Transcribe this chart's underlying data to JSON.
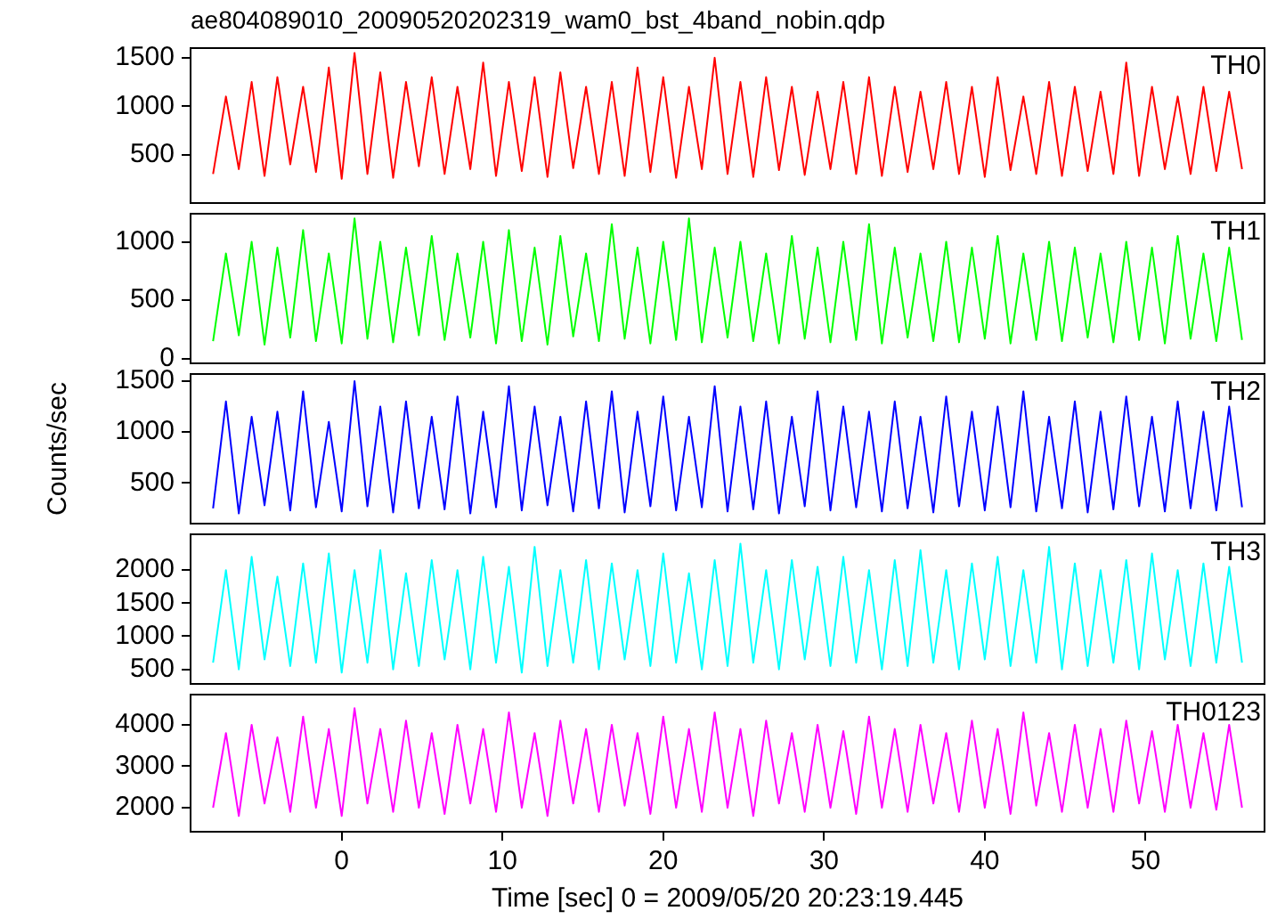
{
  "chart_data": [
    {
      "type": "line",
      "title": "ae804089010_20090520202319_wam0_bst_4band_nobin.qdp",
      "x": [
        -8,
        -7.2,
        -6.4,
        -5.6,
        -4.8,
        -4,
        -3.2,
        -2.4,
        -1.6,
        -0.8,
        0,
        0.8,
        1.6,
        2.4,
        3.2,
        4,
        4.8,
        5.6,
        6.4,
        7.2,
        8,
        8.8,
        9.6,
        10.4,
        11.2,
        12,
        12.8,
        13.6,
        14.4,
        15.2,
        16,
        16.8,
        17.6,
        18.4,
        19.2,
        20,
        20.8,
        21.6,
        22.4,
        23.2,
        24,
        24.8,
        25.6,
        26.4,
        27.2,
        28,
        28.8,
        29.6,
        30.4,
        31.2,
        32,
        32.8,
        33.6,
        34.4,
        35.2,
        36,
        36.8,
        37.6,
        38.4,
        39.2,
        40,
        40.8,
        41.6,
        42.4,
        43.2,
        44,
        44.8,
        45.6,
        46.4,
        47.2,
        48,
        48.8,
        49.6,
        50.4,
        51.2,
        52,
        52.8,
        53.6,
        54.4,
        55.2,
        56
      ],
      "series": [
        {
          "name": "TH0",
          "color": "#ff0000",
          "values": [
            300,
            1100,
            350,
            1250,
            280,
            1300,
            400,
            1200,
            320,
            1400,
            250,
            1550,
            300,
            1350,
            260,
            1250,
            380,
            1300,
            300,
            1200,
            350,
            1450,
            280,
            1250,
            330,
            1300,
            270,
            1350,
            360,
            1200,
            300,
            1250,
            280,
            1400,
            320,
            1300,
            260,
            1200,
            350,
            1500,
            300,
            1250,
            270,
            1300,
            340,
            1200,
            290,
            1150,
            350,
            1250,
            300,
            1300,
            280,
            1200,
            320,
            1150,
            350,
            1250,
            300,
            1200,
            270,
            1300,
            340,
            1100,
            300,
            1250,
            280,
            1200,
            330,
            1150,
            300,
            1450,
            280,
            1200,
            350,
            1100,
            300,
            1200,
            330,
            1150,
            350
          ]
        }
      ],
      "xlim": [
        -9.4,
        57.4
      ],
      "xticks": [
        0,
        10,
        20,
        30,
        40,
        50
      ],
      "ylim": [
        0,
        1600
      ],
      "yticks": [
        500,
        1000,
        1500
      ],
      "tick_labels": "y"
    },
    {
      "type": "line",
      "x": [
        -8,
        -7.2,
        -6.4,
        -5.6,
        -4.8,
        -4,
        -3.2,
        -2.4,
        -1.6,
        -0.8,
        0,
        0.8,
        1.6,
        2.4,
        3.2,
        4,
        4.8,
        5.6,
        6.4,
        7.2,
        8,
        8.8,
        9.6,
        10.4,
        11.2,
        12,
        12.8,
        13.6,
        14.4,
        15.2,
        16,
        16.8,
        17.6,
        18.4,
        19.2,
        20,
        20.8,
        21.6,
        22.4,
        23.2,
        24,
        24.8,
        25.6,
        26.4,
        27.2,
        28,
        28.8,
        29.6,
        30.4,
        31.2,
        32,
        32.8,
        33.6,
        34.4,
        35.2,
        36,
        36.8,
        37.6,
        38.4,
        39.2,
        40,
        40.8,
        41.6,
        42.4,
        43.2,
        44,
        44.8,
        45.6,
        46.4,
        47.2,
        48,
        48.8,
        49.6,
        50.4,
        51.2,
        52,
        52.8,
        53.6,
        54.4,
        55.2,
        56
      ],
      "series": [
        {
          "name": "TH1",
          "color": "#00ff00",
          "values": [
            150,
            900,
            200,
            1000,
            120,
            950,
            180,
            1100,
            150,
            900,
            130,
            1200,
            170,
            1000,
            140,
            950,
            200,
            1050,
            160,
            900,
            180,
            1000,
            130,
            1100,
            150,
            950,
            120,
            1050,
            190,
            900,
            150,
            1150,
            170,
            950,
            130,
            1000,
            160,
            1200,
            140,
            950,
            180,
            1000,
            150,
            900,
            130,
            1050,
            170,
            950,
            140,
            1000,
            160,
            1150,
            130,
            950,
            180,
            900,
            150,
            1000,
            140,
            950,
            170,
            1050,
            130,
            900,
            160,
            1000,
            150,
            950,
            180,
            900,
            140,
            1000,
            160,
            950,
            130,
            1050,
            170,
            900,
            150,
            950,
            160
          ]
        }
      ],
      "xlim": [
        -9.4,
        57.4
      ],
      "xticks": [
        0,
        10,
        20,
        30,
        40,
        50
      ],
      "ylim": [
        -40,
        1240
      ],
      "yticks": [
        0,
        500,
        1000
      ],
      "tick_labels": "y"
    },
    {
      "type": "line",
      "ylabel": "Counts/sec",
      "x": [
        -8,
        -7.2,
        -6.4,
        -5.6,
        -4.8,
        -4,
        -3.2,
        -2.4,
        -1.6,
        -0.8,
        0,
        0.8,
        1.6,
        2.4,
        3.2,
        4,
        4.8,
        5.6,
        6.4,
        7.2,
        8,
        8.8,
        9.6,
        10.4,
        11.2,
        12,
        12.8,
        13.6,
        14.4,
        15.2,
        16,
        16.8,
        17.6,
        18.4,
        19.2,
        20,
        20.8,
        21.6,
        22.4,
        23.2,
        24,
        24.8,
        25.6,
        26.4,
        27.2,
        28,
        28.8,
        29.6,
        30.4,
        31.2,
        32,
        32.8,
        33.6,
        34.4,
        35.2,
        36,
        36.8,
        37.6,
        38.4,
        39.2,
        40,
        40.8,
        41.6,
        42.4,
        43.2,
        44,
        44.8,
        45.6,
        46.4,
        47.2,
        48,
        48.8,
        49.6,
        50.4,
        51.2,
        52,
        52.8,
        53.6,
        54.4,
        55.2,
        56
      ],
      "series": [
        {
          "name": "TH2",
          "color": "#0000ff",
          "values": [
            250,
            1300,
            200,
            1150,
            280,
            1200,
            230,
            1400,
            260,
            1100,
            220,
            1500,
            270,
            1250,
            210,
            1300,
            250,
            1150,
            240,
            1350,
            200,
            1200,
            260,
            1450,
            230,
            1250,
            280,
            1150,
            220,
            1300,
            250,
            1400,
            210,
            1200,
            270,
            1350,
            230,
            1150,
            260,
            1450,
            220,
            1250,
            240,
            1300,
            200,
            1150,
            270,
            1400,
            230,
            1250,
            260,
            1200,
            220,
            1300,
            250,
            1150,
            210,
            1350,
            270,
            1200,
            230,
            1250,
            260,
            1400,
            220,
            1150,
            250,
            1300,
            210,
            1200,
            240,
            1350,
            270,
            1150,
            220,
            1300,
            250,
            1200,
            230,
            1250,
            260
          ]
        }
      ],
      "xlim": [
        -9.4,
        57.4
      ],
      "xticks": [
        0,
        10,
        20,
        30,
        40,
        50
      ],
      "ylim": [
        100,
        1570
      ],
      "yticks": [
        500,
        1000,
        1500
      ],
      "tick_labels": "y"
    },
    {
      "type": "line",
      "x": [
        -8,
        -7.2,
        -6.4,
        -5.6,
        -4.8,
        -4,
        -3.2,
        -2.4,
        -1.6,
        -0.8,
        0,
        0.8,
        1.6,
        2.4,
        3.2,
        4,
        4.8,
        5.6,
        6.4,
        7.2,
        8,
        8.8,
        9.6,
        10.4,
        11.2,
        12,
        12.8,
        13.6,
        14.4,
        15.2,
        16,
        16.8,
        17.6,
        18.4,
        19.2,
        20,
        20.8,
        21.6,
        22.4,
        23.2,
        24,
        24.8,
        25.6,
        26.4,
        27.2,
        28,
        28.8,
        29.6,
        30.4,
        31.2,
        32,
        32.8,
        33.6,
        34.4,
        35.2,
        36,
        36.8,
        37.6,
        38.4,
        39.2,
        40,
        40.8,
        41.6,
        42.4,
        43.2,
        44,
        44.8,
        45.6,
        46.4,
        47.2,
        48,
        48.8,
        49.6,
        50.4,
        51.2,
        52,
        52.8,
        53.6,
        54.4,
        55.2,
        56
      ],
      "series": [
        {
          "name": "TH3",
          "color": "#00ffff",
          "values": [
            600,
            2000,
            500,
            2200,
            650,
            1900,
            550,
            2100,
            600,
            2250,
            450,
            2000,
            600,
            2300,
            500,
            1950,
            550,
            2150,
            650,
            2000,
            500,
            2200,
            600,
            2050,
            450,
            2350,
            550,
            2000,
            600,
            2150,
            500,
            2100,
            650,
            2000,
            550,
            2250,
            600,
            1950,
            500,
            2150,
            550,
            2400,
            600,
            2000,
            500,
            2150,
            650,
            2050,
            550,
            2200,
            600,
            2000,
            500,
            2150,
            550,
            2300,
            600,
            2000,
            500,
            2100,
            650,
            2200,
            550,
            2000,
            600,
            2350,
            500,
            2100,
            550,
            2000,
            600,
            2150,
            500,
            2250,
            650,
            2000,
            550,
            2100,
            600,
            2050,
            600
          ]
        }
      ],
      "xlim": [
        -9.4,
        57.4
      ],
      "xticks": [
        0,
        10,
        20,
        30,
        40,
        50
      ],
      "ylim": [
        280,
        2540
      ],
      "yticks": [
        500,
        1000,
        1500,
        2000
      ],
      "tick_labels": "y"
    },
    {
      "type": "line",
      "xlabel": "Time [sec] 0 = 2009/05/20 20:23:19.445",
      "x": [
        -8,
        -7.2,
        -6.4,
        -5.6,
        -4.8,
        -4,
        -3.2,
        -2.4,
        -1.6,
        -0.8,
        0,
        0.8,
        1.6,
        2.4,
        3.2,
        4,
        4.8,
        5.6,
        6.4,
        7.2,
        8,
        8.8,
        9.6,
        10.4,
        11.2,
        12,
        12.8,
        13.6,
        14.4,
        15.2,
        16,
        16.8,
        17.6,
        18.4,
        19.2,
        20,
        20.8,
        21.6,
        22.4,
        23.2,
        24,
        24.8,
        25.6,
        26.4,
        27.2,
        28,
        28.8,
        29.6,
        30.4,
        31.2,
        32,
        32.8,
        33.6,
        34.4,
        35.2,
        36,
        36.8,
        37.6,
        38.4,
        39.2,
        40,
        40.8,
        41.6,
        42.4,
        43.2,
        44,
        44.8,
        45.6,
        46.4,
        47.2,
        48,
        48.8,
        49.6,
        50.4,
        51.2,
        52,
        52.8,
        53.6,
        54.4,
        55.2,
        56
      ],
      "series": [
        {
          "name": "TH0123",
          "color": "#ff00ff",
          "values": [
            2000,
            3800,
            1800,
            4000,
            2100,
            3700,
            1900,
            4200,
            2000,
            3900,
            1800,
            4400,
            2100,
            3900,
            1900,
            4100,
            2000,
            3800,
            1850,
            4000,
            2100,
            3900,
            1900,
            4300,
            2000,
            3800,
            1800,
            4100,
            2100,
            3900,
            1900,
            4000,
            2050,
            3800,
            1850,
            4200,
            2000,
            3900,
            1900,
            4300,
            2000,
            3900,
            1800,
            4100,
            2100,
            3800,
            1900,
            4000,
            2000,
            3850,
            1850,
            4200,
            2000,
            3900,
            1900,
            4000,
            2100,
            3800,
            1900,
            4100,
            2000,
            3900,
            1850,
            4300,
            2050,
            3800,
            1900,
            4000,
            2000,
            3900,
            1900,
            4100,
            2100,
            3850,
            1900,
            4000,
            2000,
            3800,
            1950,
            4000,
            2000
          ]
        }
      ],
      "xlim": [
        -9.4,
        57.4
      ],
      "xticks": [
        0,
        10,
        20,
        30,
        40,
        50
      ],
      "ylim": [
        1420,
        4730
      ],
      "yticks": [
        2000,
        3000,
        4000
      ]
    }
  ]
}
